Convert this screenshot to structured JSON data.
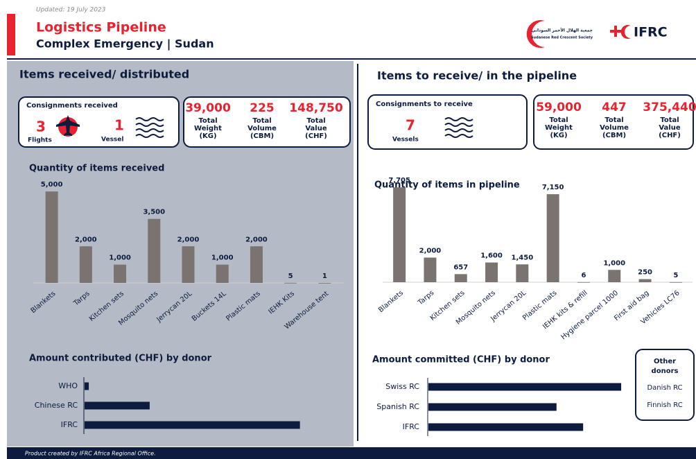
{
  "header": {
    "updated": "Updated: 19 July 2023",
    "title": "Logistics Pipeline",
    "subtitle": "Complex Emergency | Sudan",
    "src_arabic": "جمعية الهلال الأحمر السوداني",
    "src_name": "Sudanese Red Crescent Society",
    "ifrc": "IFRC"
  },
  "left": {
    "heading": "Items received/ distributed",
    "consignments": {
      "title": "Consignments received",
      "flights_count": "3",
      "flights_label": "Flights",
      "vessel_count": "1",
      "vessel_label": "Vessel"
    },
    "totals": [
      {
        "value": "39,000",
        "label": [
          "Total",
          "Weight",
          "(KG)"
        ]
      },
      {
        "value": "225",
        "label": [
          "Total",
          "Volume",
          "(CBM)"
        ]
      },
      {
        "value": "148,750",
        "label": [
          "Total",
          "Value",
          "(CHF)"
        ]
      }
    ]
  },
  "right": {
    "heading": "Items to receive/ in the pipeline",
    "consignments": {
      "title": "Consignments to receive",
      "vessels_count": "7",
      "vessels_label": "Vessels"
    },
    "totals": [
      {
        "value": "59,000",
        "label": [
          "Total",
          "Weight",
          "(KG)"
        ]
      },
      {
        "value": "447",
        "label": [
          "Total",
          "Volume",
          "(CBM)"
        ]
      },
      {
        "value": "375,440",
        "label": [
          "Total",
          "Value",
          "(CHF)"
        ]
      }
    ],
    "other_donors": {
      "title": [
        "Other",
        "donors"
      ],
      "items": [
        "Danish RC",
        "Finnish RC"
      ]
    }
  },
  "footer": "Product created by IFRC Africa Regional Office.",
  "chart_data": [
    {
      "type": "bar",
      "title": "Quantity of items received",
      "categories": [
        "Blankets",
        "Tarps",
        "Kitchen sets",
        "Mosquito nets",
        "Jerrycan 20L",
        "Buckets 14L",
        "Plastic mats",
        "IEHK Kits",
        "Warehouse tent"
      ],
      "values": [
        5000,
        2000,
        1000,
        3500,
        2000,
        1000,
        2000,
        5,
        1
      ],
      "value_labels": [
        "5,000",
        "2,000",
        "1,000",
        "3,500",
        "2,000",
        "1,000",
        "2,000",
        "5",
        "1"
      ],
      "color": "#7b7370",
      "ylim": [
        0,
        5500
      ]
    },
    {
      "type": "bar",
      "title": "Quantity of items in pipeline",
      "categories": [
        "Blankets",
        "Tarps",
        "Kitchen sets",
        "Mosquito nets",
        "Jerrycan 20L",
        "Plastic mats",
        "IEHK kits & refill",
        "Hygiene parcel 1000",
        "First aid bag",
        "Vehicles LC76"
      ],
      "values": [
        7705,
        2000,
        657,
        1600,
        1450,
        7150,
        6,
        1000,
        250,
        5
      ],
      "value_labels": [
        "7,705",
        "2,000",
        "657",
        "1,600",
        "1,450",
        "7,150",
        "6",
        "1,000",
        "250",
        "5"
      ],
      "color": "#7b7370",
      "ylim": [
        0,
        8000
      ]
    },
    {
      "type": "hbar",
      "title": "Amount contributed (CHF) by donor",
      "categories": [
        "WHO",
        "Chinese RC",
        "IFRC"
      ],
      "values": [
        2200,
        34000,
        112500
      ],
      "color": "#0d1b3e",
      "xlim": [
        0,
        130000
      ]
    },
    {
      "type": "hbar",
      "title": "Amount committed (CHF) by donor",
      "categories": [
        "Swiss RC",
        "Spanish RC",
        "IFRC"
      ],
      "values": [
        152000,
        101000,
        122000
      ],
      "color": "#0d1b3e",
      "xlim": [
        0,
        170000
      ]
    }
  ]
}
